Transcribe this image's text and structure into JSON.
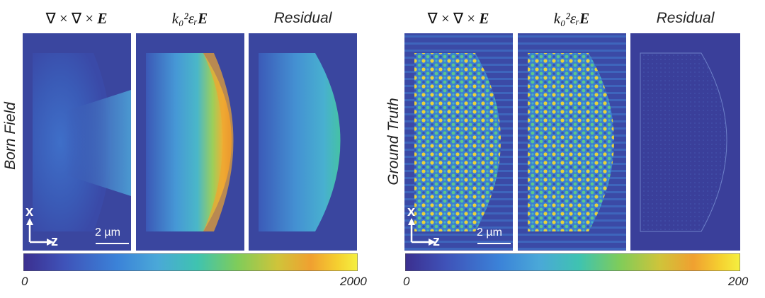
{
  "left_group": {
    "row_label": "Born Field",
    "titles": [
      "∇ × ∇ × ",
      "k₀²εᵣ",
      "Residual"
    ],
    "title_suffix_bold": "E",
    "scale_bar_label": "2 µm",
    "axis_x_label": "x",
    "axis_z_label": "z",
    "colorbar_min": "0",
    "colorbar_max": "2000"
  },
  "right_group": {
    "row_label": "Ground Truth",
    "titles": [
      "∇ × ∇ × ",
      "k₀²εᵣ",
      "Residual"
    ],
    "title_suffix_bold": "E",
    "scale_bar_label": "2 µm",
    "axis_x_label": "x",
    "axis_z_label": "z",
    "colorbar_min": "0",
    "colorbar_max": "200"
  },
  "colormap": [
    "#3b2f8f",
    "#3f52b8",
    "#3b82d8",
    "#4aa8d8",
    "#3fc3b0",
    "#7fcc5a",
    "#cfc43a",
    "#f0a030",
    "#f5d030",
    "#f5f040"
  ]
}
